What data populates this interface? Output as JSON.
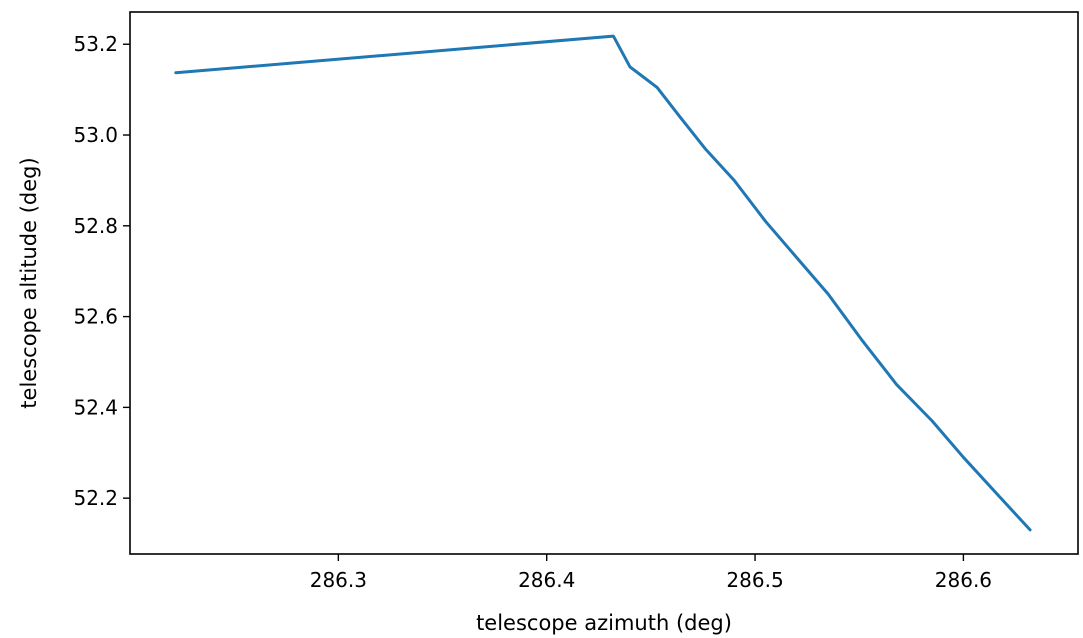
{
  "chart_data": {
    "type": "line",
    "title": "",
    "xlabel": "telescope azimuth (deg)",
    "ylabel": "telescope altitude (deg)",
    "xlim": [
      286.2,
      286.655
    ],
    "ylim": [
      52.077,
      53.271
    ],
    "xticks": [
      286.3,
      286.4,
      286.5,
      286.6
    ],
    "xtick_labels": [
      "286.3",
      "286.4",
      "286.5",
      "286.6"
    ],
    "yticks": [
      52.2,
      52.4,
      52.6,
      52.8,
      53.0,
      53.2
    ],
    "ytick_labels": [
      "52.2",
      "52.4",
      "52.6",
      "52.8",
      "53.0",
      "53.2"
    ],
    "grid": false,
    "legend": false,
    "series": [
      {
        "color": "#1f77b4",
        "x": [
          286.222,
          286.432,
          286.44,
          286.453,
          286.464,
          286.476,
          286.49,
          286.505,
          286.52,
          286.535,
          286.551,
          286.568,
          286.585,
          286.6,
          286.616,
          286.632
        ],
        "y": [
          53.137,
          53.218,
          53.15,
          53.105,
          53.04,
          52.97,
          52.9,
          52.81,
          52.73,
          52.65,
          52.55,
          52.45,
          52.37,
          52.29,
          52.21,
          52.13
        ]
      }
    ]
  }
}
